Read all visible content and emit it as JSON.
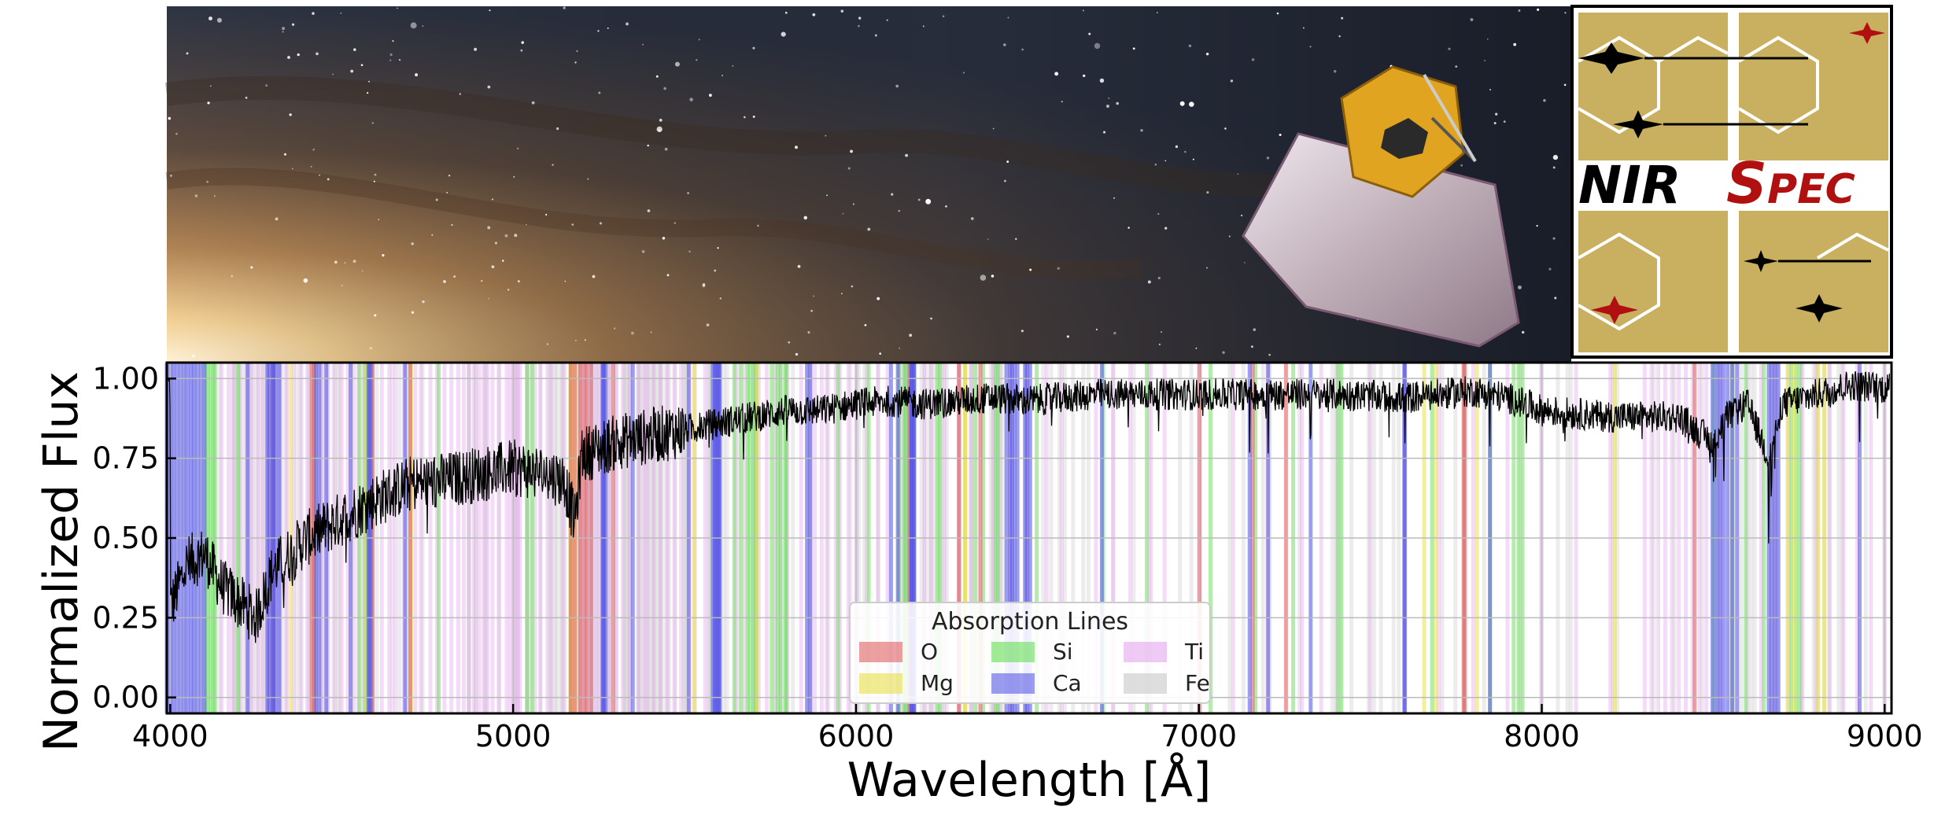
{
  "colors": {
    "O": "#e06060",
    "Mg": "#e8e04a",
    "Si": "#66dd55",
    "Ca": "#5a5ae6",
    "Ti": "#e3a6ee",
    "Fe": "#c8c8c8",
    "spectrum": "#000000",
    "logo_gold": "#c8b060",
    "logo_red": "#b01010"
  },
  "banner": {
    "image": "galaxy-telescope-image",
    "logo": {
      "text_black": "NIR",
      "text_red_big": "S",
      "text_red_small": "PEC"
    }
  },
  "chart_data": {
    "type": "line",
    "title": "",
    "xlabel": "Wavelength [Å]",
    "ylabel": "Normalized Flux",
    "xlim": [
      3990,
      9020
    ],
    "ylim": [
      -0.05,
      1.05
    ],
    "xticks": [
      4000,
      5000,
      6000,
      7000,
      8000,
      9000
    ],
    "xtick_labels": [
      "4000",
      "5000",
      "6000",
      "7000",
      "8000",
      "9000"
    ],
    "yticks": [
      0.0,
      0.25,
      0.5,
      0.75,
      1.0
    ],
    "ytick_labels": [
      "0.00",
      "0.25",
      "0.50",
      "0.75",
      "1.00"
    ],
    "grid": true,
    "legend": {
      "title": "Absorption Lines",
      "placement": "lower-center",
      "columns": 3,
      "entries": [
        "O",
        "Mg",
        "Si",
        "Ca",
        "Ti",
        "Fe"
      ]
    },
    "series": [
      {
        "x": [
          4000,
          4050,
          4100,
          4150,
          4200,
          4250,
          4300,
          4350,
          4400,
          4500,
          4600,
          4700,
          4800,
          4900,
          5000,
          5100,
          5150,
          5180,
          5200,
          5300,
          5400,
          5500,
          5600,
          5700,
          5800,
          5900,
          6000,
          6100,
          6200,
          6300,
          6400,
          6500,
          6600,
          6700,
          6800,
          6900,
          7000,
          7200,
          7400,
          7600,
          7700,
          7800,
          7900,
          8000,
          8200,
          8400,
          8498,
          8542,
          8600,
          8662,
          8700,
          8800,
          8900,
          9000
        ],
        "values": [
          0.28,
          0.42,
          0.45,
          0.35,
          0.3,
          0.25,
          0.4,
          0.45,
          0.5,
          0.56,
          0.62,
          0.67,
          0.68,
          0.7,
          0.72,
          0.7,
          0.68,
          0.55,
          0.76,
          0.8,
          0.82,
          0.84,
          0.86,
          0.88,
          0.9,
          0.9,
          0.92,
          0.93,
          0.92,
          0.93,
          0.94,
          0.93,
          0.94,
          0.95,
          0.95,
          0.95,
          0.95,
          0.95,
          0.95,
          0.94,
          0.95,
          0.96,
          0.94,
          0.9,
          0.88,
          0.88,
          0.8,
          0.88,
          0.92,
          0.75,
          0.92,
          0.95,
          0.98,
          0.97
        ]
      }
    ],
    "lines": {
      "O": [
        4300,
        4412,
        4420,
        4590,
        4700,
        5168,
        5180,
        5196,
        5206,
        5215,
        5228,
        5292,
        6156,
        6300,
        6363,
        7002,
        7157,
        7254,
        7772,
        7775,
        8446
      ],
      "Mg": [
        4352,
        4571,
        4703,
        5167,
        5172,
        5183,
        5528,
        5711,
        6318,
        6319,
        7657,
        7691,
        7811,
        8213,
        8717,
        8736,
        8806,
        8824
      ],
      "Si": [
        4103,
        4110,
        4117,
        4125,
        4130,
        4198,
        4552,
        4568,
        4575,
        4783,
        5041,
        5056,
        5645,
        5665,
        5684,
        5690,
        5701,
        5708,
        5754,
        5772,
        5780,
        5793,
        5797,
        5948,
        6037,
        6125,
        6142,
        6145,
        6155,
        6237,
        6244,
        6347,
        6371,
        6407,
        6414,
        6527,
        6721,
        6848,
        7034,
        7165,
        7275,
        7405,
        7416,
        7680,
        7849,
        7918,
        7932,
        7944,
        8502,
        8556,
        8595,
        8648,
        8728,
        8742,
        8752
      ],
      "Ca": [
        3968,
        3980,
        3990,
        4000,
        4010,
        4020,
        4030,
        4040,
        4050,
        4060,
        4070,
        4080,
        4090,
        4100,
        4226,
        4283,
        4289,
        4298,
        4302,
        4307,
        4318,
        4425,
        4435,
        4455,
        4526,
        4578,
        4581,
        4585,
        4685,
        5261,
        5262,
        5265,
        5270,
        5349,
        5512,
        5582,
        5588,
        5590,
        5594,
        5598,
        5601,
        5603,
        5857,
        5867,
        6102,
        6122,
        6161,
        6162,
        6163,
        6166,
        6169,
        6170,
        6439,
        6449,
        6455,
        6462,
        6471,
        6493,
        6499,
        6508,
        6717,
        7148,
        7202,
        7326,
        7599,
        7601,
        7849,
        8498,
        8510,
        8520,
        8530,
        8542,
        8555,
        8570,
        8662,
        8670,
        8680,
        8690,
        8927
      ],
      "Ti": [
        4150,
        4170,
        4185,
        4205,
        4225,
        4240,
        4256,
        4270,
        4285,
        4300,
        4320,
        4340,
        4360,
        4380,
        4400,
        4420,
        4440,
        4460,
        4480,
        4500,
        4518,
        4535,
        4548,
        4563,
        4590,
        4617,
        4639,
        4656,
        4681,
        4700,
        4715,
        4731,
        4759,
        4778,
        4800,
        4820,
        4840,
        4856,
        4870,
        4885,
        4900,
        4913,
        4926,
        4940,
        4960,
        4981,
        4991,
        5000,
        5007,
        5014,
        5020,
        5040,
        5064,
        5080,
        5100,
        5113,
        5147,
        5173,
        5193,
        5210,
        5224,
        5240,
        5252,
        5280,
        5300,
        5320,
        5340,
        5366,
        5380,
        5390,
        5410,
        5430,
        5450,
        5470,
        5490,
        5514,
        5530,
        5560,
        5600,
        5649,
        5675,
        5700,
        5716,
        5740,
        5766,
        5780,
        5800,
        5840,
        5866,
        5880,
        5900,
        5918,
        5941,
        5953,
        5978,
        6000,
        6031,
        6064,
        6092,
        6126,
        6150,
        6200,
        6220,
        6258,
        6300,
        6336,
        6400,
        6420,
        6450,
        6500,
        6556,
        6600,
        6700,
        6750,
        6800,
        6860,
        6900,
        7000,
        7100,
        7200,
        7300,
        7357,
        7400,
        7500,
        7600,
        7700,
        7800,
        7900,
        8000,
        8100,
        8200,
        8300,
        8320,
        8340,
        8360,
        8380,
        8400,
        8420,
        8440,
        8460,
        8480,
        8520,
        8560,
        8600,
        8640,
        8680,
        8720,
        8760,
        8800,
        8840,
        8880,
        8920,
        8960,
        9000
      ],
      "Fe": [
        4005,
        4045,
        4063,
        4071,
        4132,
        4144,
        4181,
        4187,
        4191,
        4199,
        4202,
        4216,
        4222,
        4233,
        4235,
        4250,
        4260,
        4271,
        4282,
        4294,
        4299,
        4315,
        4325,
        4337,
        4369,
        4383,
        4404,
        4415,
        4427,
        4442,
        4447,
        4459,
        4476,
        4489,
        4494,
        4528,
        4602,
        4647,
        4668,
        4691,
        4736,
        4871,
        4872,
        4890,
        4891,
        4919,
        4920,
        4957,
        5006,
        5012,
        5041,
        5051,
        5079,
        5107,
        5110,
        5123,
        5127,
        5139,
        5142,
        5151,
        5167,
        5192,
        5195,
        5216,
        5227,
        5232,
        5242,
        5250,
        5266,
        5269,
        5281,
        5283,
        5302,
        5324,
        5328,
        5332,
        5339,
        5341,
        5364,
        5367,
        5370,
        5383,
        5393,
        5397,
        5405,
        5410,
        5415,
        5424,
        5429,
        5434,
        5446,
        5455,
        5473,
        5497,
        5501,
        5506,
        5569,
        5573,
        5576,
        5586,
        5615,
        5624,
        5658,
        5709,
        5763,
        5816,
        5862,
        5914,
        5984,
        6003,
        6008,
        6024,
        6065,
        6136,
        6137,
        6191,
        6200,
        6213,
        6219,
        6230,
        6246,
        6252,
        6265,
        6301,
        6302,
        6318,
        6335,
        6336,
        6355,
        6393,
        6400,
        6411,
        6421,
        6430,
        6494,
        6546,
        6569,
        6593,
        6609,
        6633,
        6663,
        6678,
        6750,
        6810,
        6855,
        6945,
        6978,
        7090,
        7130,
        7187,
        7207,
        7293,
        7389,
        7411,
        7445,
        7495,
        7511,
        7531,
        7568,
        7583,
        7710,
        7748,
        7780,
        7832,
        7937,
        7998,
        8047,
        8075,
        8085,
        8207,
        8220,
        8327,
        8387,
        8468,
        8514,
        8582,
        8611,
        8621,
        8675,
        8688,
        8757,
        8793,
        8805,
        8824,
        8838,
        8866,
        8876,
        8945,
        8999
      ]
    }
  }
}
